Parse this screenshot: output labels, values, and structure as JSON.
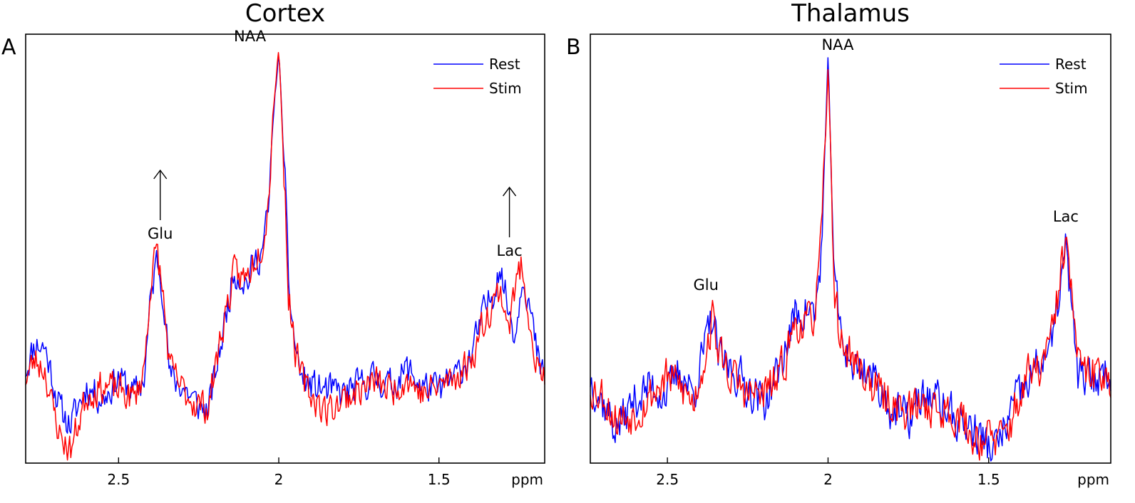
{
  "chart_data": [
    {
      "type": "line",
      "panel_label": "A",
      "title": "Cortex",
      "xlabel": "ppm",
      "ylabel": "",
      "x_reversed": true,
      "xlim": [
        2.79,
        1.17
      ],
      "ylim": [
        0,
        100
      ],
      "xticks": [
        {
          "value": 2.5,
          "label": "2.5"
        },
        {
          "value": 2.0,
          "label": "2"
        },
        {
          "value": 1.5,
          "label": "1.5"
        }
      ],
      "grid": false,
      "legend": {
        "position": "top-right",
        "entries": [
          "Rest",
          "Stim"
        ]
      },
      "series": [
        {
          "name": "Rest",
          "color": "#0000ff",
          "anchors": [
            [
              2.79,
              22
            ],
            [
              2.76,
              28
            ],
            [
              2.73,
              27
            ],
            [
              2.71,
              21
            ],
            [
              2.68,
              12
            ],
            [
              2.65,
              9
            ],
            [
              2.6,
              18
            ],
            [
              2.55,
              15
            ],
            [
              2.5,
              20
            ],
            [
              2.45,
              16
            ],
            [
              2.42,
              20
            ],
            [
              2.4,
              38
            ],
            [
              2.38,
              48
            ],
            [
              2.36,
              40
            ],
            [
              2.34,
              20
            ],
            [
              2.3,
              18
            ],
            [
              2.26,
              14
            ],
            [
              2.22,
              12
            ],
            [
              2.18,
              28
            ],
            [
              2.14,
              45
            ],
            [
              2.1,
              42
            ],
            [
              2.08,
              46
            ],
            [
              2.05,
              50
            ],
            [
              2.03,
              60
            ],
            [
              2.02,
              78
            ],
            [
              2.0,
              96
            ],
            [
              1.98,
              65
            ],
            [
              1.97,
              42
            ],
            [
              1.95,
              28
            ],
            [
              1.93,
              20
            ],
            [
              1.9,
              18
            ],
            [
              1.85,
              17
            ],
            [
              1.8,
              16
            ],
            [
              1.75,
              18
            ],
            [
              1.7,
              20
            ],
            [
              1.65,
              18
            ],
            [
              1.6,
              22
            ],
            [
              1.55,
              18
            ],
            [
              1.5,
              17
            ],
            [
              1.45,
              20
            ],
            [
              1.4,
              25
            ],
            [
              1.36,
              35
            ],
            [
              1.33,
              40
            ],
            [
              1.31,
              47
            ],
            [
              1.3,
              42
            ],
            [
              1.28,
              35
            ],
            [
              1.26,
              30
            ],
            [
              1.24,
              45
            ],
            [
              1.22,
              38
            ],
            [
              1.2,
              28
            ],
            [
              1.18,
              20
            ],
            [
              1.17,
              22
            ]
          ],
          "noise": 2.2,
          "seed": 11
        },
        {
          "name": "Stim",
          "color": "#ff0000",
          "anchors": [
            [
              2.79,
              20
            ],
            [
              2.76,
              24
            ],
            [
              2.73,
              22
            ],
            [
              2.71,
              14
            ],
            [
              2.68,
              6
            ],
            [
              2.65,
              3
            ],
            [
              2.6,
              16
            ],
            [
              2.55,
              18
            ],
            [
              2.5,
              17
            ],
            [
              2.45,
              15
            ],
            [
              2.42,
              22
            ],
            [
              2.4,
              42
            ],
            [
              2.38,
              50
            ],
            [
              2.36,
              38
            ],
            [
              2.34,
              22
            ],
            [
              2.3,
              17
            ],
            [
              2.26,
              14
            ],
            [
              2.22,
              13
            ],
            [
              2.18,
              30
            ],
            [
              2.14,
              44
            ],
            [
              2.1,
              43
            ],
            [
              2.08,
              47
            ],
            [
              2.05,
              52
            ],
            [
              2.03,
              62
            ],
            [
              2.02,
              80
            ],
            [
              2.0,
              97
            ],
            [
              1.98,
              62
            ],
            [
              1.97,
              40
            ],
            [
              1.95,
              27
            ],
            [
              1.93,
              20
            ],
            [
              1.9,
              16
            ],
            [
              1.85,
              12
            ],
            [
              1.8,
              15
            ],
            [
              1.75,
              17
            ],
            [
              1.7,
              19
            ],
            [
              1.65,
              17
            ],
            [
              1.6,
              20
            ],
            [
              1.55,
              16
            ],
            [
              1.5,
              18
            ],
            [
              1.45,
              20
            ],
            [
              1.4,
              24
            ],
            [
              1.36,
              33
            ],
            [
              1.33,
              38
            ],
            [
              1.31,
              40
            ],
            [
              1.3,
              38
            ],
            [
              1.28,
              32
            ],
            [
              1.26,
              42
            ],
            [
              1.24,
              46
            ],
            [
              1.22,
              36
            ],
            [
              1.2,
              24
            ],
            [
              1.18,
              20
            ],
            [
              1.17,
              21
            ]
          ],
          "noise": 2.2,
          "seed": 23
        }
      ],
      "annotations": [
        {
          "text": "NAA",
          "x": 2.09,
          "y": 96,
          "arrow": false
        },
        {
          "text": "Glu",
          "x": 2.37,
          "y": 50,
          "arrow": true
        },
        {
          "text": "Lac",
          "x": 1.28,
          "y": 46,
          "arrow": true
        }
      ]
    },
    {
      "type": "line",
      "panel_label": "B",
      "title": "Thalamus",
      "xlabel": "ppm",
      "ylabel": "",
      "x_reversed": true,
      "xlim": [
        2.74,
        1.12
      ],
      "ylim": [
        0,
        100
      ],
      "xticks": [
        {
          "value": 2.5,
          "label": "2.5"
        },
        {
          "value": 2.0,
          "label": "2"
        },
        {
          "value": 1.5,
          "label": "1.5"
        }
      ],
      "grid": false,
      "legend": {
        "position": "top-right",
        "entries": [
          "Rest",
          "Stim"
        ]
      },
      "series": [
        {
          "name": "Rest",
          "color": "#0000ff",
          "anchors": [
            [
              2.74,
              20
            ],
            [
              2.7,
              14
            ],
            [
              2.66,
              8
            ],
            [
              2.6,
              15
            ],
            [
              2.55,
              18
            ],
            [
              2.5,
              16
            ],
            [
              2.46,
              22
            ],
            [
              2.42,
              16
            ],
            [
              2.38,
              28
            ],
            [
              2.36,
              34
            ],
            [
              2.34,
              24
            ],
            [
              2.3,
              22
            ],
            [
              2.25,
              18
            ],
            [
              2.2,
              14
            ],
            [
              2.15,
              22
            ],
            [
              2.12,
              30
            ],
            [
              2.1,
              35
            ],
            [
              2.06,
              36
            ],
            [
              2.04,
              34
            ],
            [
              2.02,
              50
            ],
            [
              2.0,
              94
            ],
            [
              1.99,
              70
            ],
            [
              1.98,
              42
            ],
            [
              1.96,
              30
            ],
            [
              1.92,
              22
            ],
            [
              1.88,
              22
            ],
            [
              1.84,
              18
            ],
            [
              1.8,
              12
            ],
            [
              1.75,
              10
            ],
            [
              1.7,
              16
            ],
            [
              1.65,
              14
            ],
            [
              1.6,
              10
            ],
            [
              1.55,
              8
            ],
            [
              1.5,
              4
            ],
            [
              1.48,
              3
            ],
            [
              1.45,
              8
            ],
            [
              1.42,
              14
            ],
            [
              1.38,
              18
            ],
            [
              1.34,
              24
            ],
            [
              1.3,
              28
            ],
            [
              1.28,
              40
            ],
            [
              1.26,
              50
            ],
            [
              1.24,
              34
            ],
            [
              1.22,
              20
            ],
            [
              1.18,
              19
            ],
            [
              1.15,
              21
            ],
            [
              1.12,
              22
            ]
          ],
          "noise": 2.8,
          "seed": 37
        },
        {
          "name": "Stim",
          "color": "#ff0000",
          "anchors": [
            [
              2.74,
              18
            ],
            [
              2.7,
              16
            ],
            [
              2.66,
              10
            ],
            [
              2.6,
              12
            ],
            [
              2.55,
              16
            ],
            [
              2.5,
              20
            ],
            [
              2.46,
              18
            ],
            [
              2.42,
              14
            ],
            [
              2.38,
              26
            ],
            [
              2.36,
              34
            ],
            [
              2.34,
              26
            ],
            [
              2.3,
              20
            ],
            [
              2.25,
              16
            ],
            [
              2.2,
              16
            ],
            [
              2.15,
              20
            ],
            [
              2.12,
              28
            ],
            [
              2.1,
              33
            ],
            [
              2.06,
              32
            ],
            [
              2.04,
              36
            ],
            [
              2.02,
              52
            ],
            [
              2.0,
              92
            ],
            [
              1.99,
              68
            ],
            [
              1.98,
              40
            ],
            [
              1.96,
              28
            ],
            [
              1.92,
              24
            ],
            [
              1.88,
              20
            ],
            [
              1.84,
              16
            ],
            [
              1.8,
              14
            ],
            [
              1.75,
              12
            ],
            [
              1.7,
              14
            ],
            [
              1.65,
              12
            ],
            [
              1.6,
              12
            ],
            [
              1.55,
              6
            ],
            [
              1.5,
              6
            ],
            [
              1.48,
              5
            ],
            [
              1.45,
              6
            ],
            [
              1.42,
              12
            ],
            [
              1.38,
              20
            ],
            [
              1.34,
              22
            ],
            [
              1.3,
              30
            ],
            [
              1.28,
              42
            ],
            [
              1.26,
              52
            ],
            [
              1.24,
              38
            ],
            [
              1.22,
              22
            ],
            [
              1.18,
              20
            ],
            [
              1.15,
              22
            ],
            [
              1.12,
              20
            ]
          ],
          "noise": 2.8,
          "seed": 53
        }
      ],
      "annotations": [
        {
          "text": "NAA",
          "x": 1.97,
          "y": 94,
          "arrow": false
        },
        {
          "text": "Glu",
          "x": 2.38,
          "y": 38,
          "arrow": false
        },
        {
          "text": "Lac",
          "x": 1.26,
          "y": 54,
          "arrow": false
        }
      ]
    }
  ]
}
